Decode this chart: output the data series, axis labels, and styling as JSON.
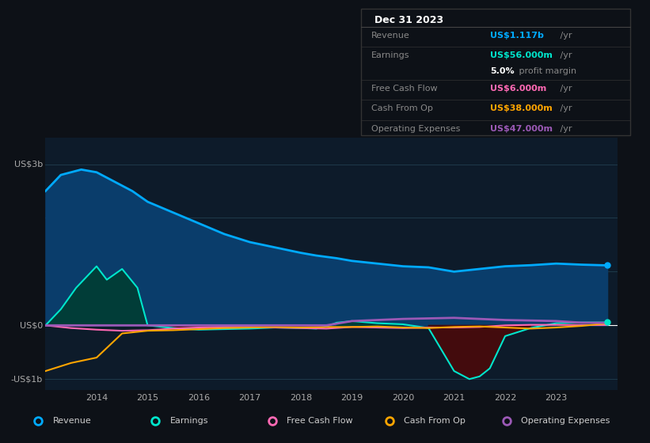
{
  "bg_color": "#0d1117",
  "plot_bg_color": "#0d1b2a",
  "grid_color": "#1e3a4a",
  "zero_line_color": "#ffffff",
  "ylim": [
    -1.2,
    3.5
  ],
  "xlim": [
    2013.0,
    2024.2
  ],
  "xtick_years": [
    2014,
    2015,
    2016,
    2017,
    2018,
    2019,
    2020,
    2021,
    2022,
    2023
  ],
  "legend_labels": [
    "Revenue",
    "Earnings",
    "Free Cash Flow",
    "Cash From Op",
    "Operating Expenses"
  ],
  "legend_colors": [
    "#00aaff",
    "#00e5cc",
    "#ff69b4",
    "#ffa500",
    "#9b59b6"
  ],
  "info_box": {
    "date": "Dec 31 2023",
    "rows": [
      {
        "label": "Revenue",
        "value": "US$1.117b",
        "value_color": "#00aaff",
        "suffix": " /yr",
        "sub": null
      },
      {
        "label": "Earnings",
        "value": "US$56.000m",
        "value_color": "#00e5cc",
        "suffix": " /yr",
        "sub": "5.0% profit margin"
      },
      {
        "label": "Free Cash Flow",
        "value": "US$6.000m",
        "value_color": "#ff69b4",
        "suffix": " /yr",
        "sub": null
      },
      {
        "label": "Cash From Op",
        "value": "US$38.000m",
        "value_color": "#ffa500",
        "suffix": " /yr",
        "sub": null
      },
      {
        "label": "Operating Expenses",
        "value": "US$47.000m",
        "value_color": "#9b59b6",
        "suffix": " /yr",
        "sub": null
      }
    ]
  },
  "revenue": {
    "x": [
      2013.0,
      2013.3,
      2013.7,
      2014.0,
      2014.3,
      2014.7,
      2015.0,
      2015.5,
      2016.0,
      2016.5,
      2017.0,
      2017.5,
      2018.0,
      2018.3,
      2018.7,
      2019.0,
      2019.5,
      2020.0,
      2020.5,
      2021.0,
      2021.5,
      2022.0,
      2022.5,
      2023.0,
      2023.5,
      2024.0
    ],
    "y": [
      2.5,
      2.8,
      2.9,
      2.85,
      2.7,
      2.5,
      2.3,
      2.1,
      1.9,
      1.7,
      1.55,
      1.45,
      1.35,
      1.3,
      1.25,
      1.2,
      1.15,
      1.1,
      1.08,
      1.0,
      1.05,
      1.1,
      1.12,
      1.15,
      1.13,
      1.117
    ],
    "color": "#00aaff",
    "fill_color": "#0a3d6b",
    "lw": 2
  },
  "earnings": {
    "x": [
      2013.0,
      2013.3,
      2013.6,
      2013.9,
      2014.0,
      2014.2,
      2014.5,
      2014.8,
      2015.0,
      2015.5,
      2016.0,
      2016.5,
      2017.0,
      2017.5,
      2018.0,
      2018.3,
      2018.5,
      2018.7,
      2019.0,
      2019.5,
      2020.0,
      2020.5,
      2021.0,
      2021.3,
      2021.5,
      2021.7,
      2022.0,
      2022.5,
      2023.0,
      2023.5,
      2024.0
    ],
    "y": [
      0.0,
      0.3,
      0.7,
      1.0,
      1.1,
      0.85,
      1.05,
      0.7,
      0.0,
      -0.05,
      -0.08,
      -0.07,
      -0.06,
      -0.04,
      -0.05,
      -0.06,
      -0.02,
      0.05,
      0.08,
      0.04,
      0.02,
      -0.05,
      -0.85,
      -1.0,
      -0.95,
      -0.8,
      -0.2,
      -0.05,
      0.04,
      0.055,
      0.056
    ],
    "color": "#00e5cc",
    "pos_fill_color": "#003d33",
    "neg_fill_color": "#4a0a0a",
    "lw": 1.5
  },
  "free_cash_flow": {
    "x": [
      2013.0,
      2013.5,
      2014.0,
      2014.5,
      2015.0,
      2015.5,
      2016.0,
      2016.5,
      2017.0,
      2017.5,
      2018.0,
      2018.5,
      2019.0,
      2019.5,
      2020.0,
      2020.5,
      2021.0,
      2021.5,
      2022.0,
      2022.5,
      2023.0,
      2023.5,
      2024.0
    ],
    "y": [
      0.0,
      -0.05,
      -0.08,
      -0.1,
      -0.09,
      -0.06,
      -0.04,
      -0.03,
      -0.03,
      -0.04,
      -0.05,
      -0.06,
      -0.03,
      -0.04,
      -0.05,
      -0.04,
      -0.04,
      -0.03,
      0.0,
      0.01,
      0.01,
      0.006,
      0.006
    ],
    "color": "#ff69b4",
    "lw": 1.5
  },
  "cash_from_op": {
    "x": [
      2013.0,
      2013.5,
      2014.0,
      2014.5,
      2015.0,
      2015.5,
      2016.0,
      2016.5,
      2017.0,
      2017.5,
      2018.0,
      2018.5,
      2019.0,
      2019.5,
      2020.0,
      2020.5,
      2021.0,
      2021.5,
      2022.0,
      2022.5,
      2023.0,
      2023.5,
      2024.0
    ],
    "y": [
      -0.85,
      -0.7,
      -0.6,
      -0.15,
      -0.1,
      -0.09,
      -0.07,
      -0.05,
      -0.04,
      -0.03,
      -0.04,
      -0.03,
      -0.03,
      -0.02,
      -0.04,
      -0.05,
      -0.03,
      -0.02,
      -0.04,
      -0.06,
      -0.04,
      -0.01,
      0.038
    ],
    "color": "#ffa500",
    "lw": 1.5
  },
  "operating_expenses": {
    "x": [
      2013.0,
      2013.5,
      2014.0,
      2014.5,
      2015.0,
      2015.5,
      2016.0,
      2016.5,
      2017.0,
      2017.5,
      2018.0,
      2018.5,
      2019.0,
      2019.5,
      2020.0,
      2020.5,
      2021.0,
      2021.5,
      2022.0,
      2022.5,
      2023.0,
      2023.5,
      2024.0
    ],
    "y": [
      0.0,
      0.0,
      0.0,
      0.0,
      0.0,
      0.0,
      0.0,
      0.0,
      0.0,
      0.0,
      0.0,
      0.0,
      0.08,
      0.1,
      0.12,
      0.13,
      0.14,
      0.12,
      0.1,
      0.09,
      0.08,
      0.05,
      0.047
    ],
    "color": "#9b59b6",
    "lw": 2.0
  }
}
